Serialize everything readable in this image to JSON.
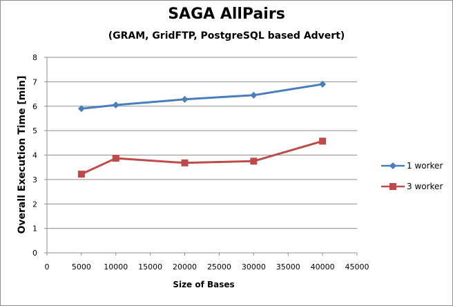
{
  "chart_data": {
    "type": "line",
    "title": "SAGA AllPairs",
    "subtitle": "(GRAM, GridFTP, PostgreSQL based Advert)",
    "xlabel": "Size of Bases",
    "ylabel": "Overall Execution Time [min]",
    "xlim": [
      0,
      45000
    ],
    "ylim": [
      0,
      8
    ],
    "xticks": [
      "0",
      "5000",
      "10000",
      "15000",
      "20000",
      "25000",
      "30000",
      "35000",
      "40000",
      "45000"
    ],
    "yticks": [
      "0",
      "1",
      "2",
      "3",
      "4",
      "5",
      "6",
      "7",
      "8"
    ],
    "grid": "horizontal",
    "legend_position": "right",
    "series": [
      {
        "name": "1 worker",
        "color": "#4a7ebb",
        "marker": "diamond",
        "x": [
          5000,
          10000,
          20000,
          30000,
          40000
        ],
        "y": [
          5.9,
          6.05,
          6.28,
          6.45,
          6.9
        ]
      },
      {
        "name": "3 worker",
        "color": "#be4b48",
        "marker": "square",
        "x": [
          5000,
          10000,
          20000,
          30000,
          40000
        ],
        "y": [
          3.22,
          3.87,
          3.68,
          3.75,
          4.57
        ]
      }
    ]
  }
}
